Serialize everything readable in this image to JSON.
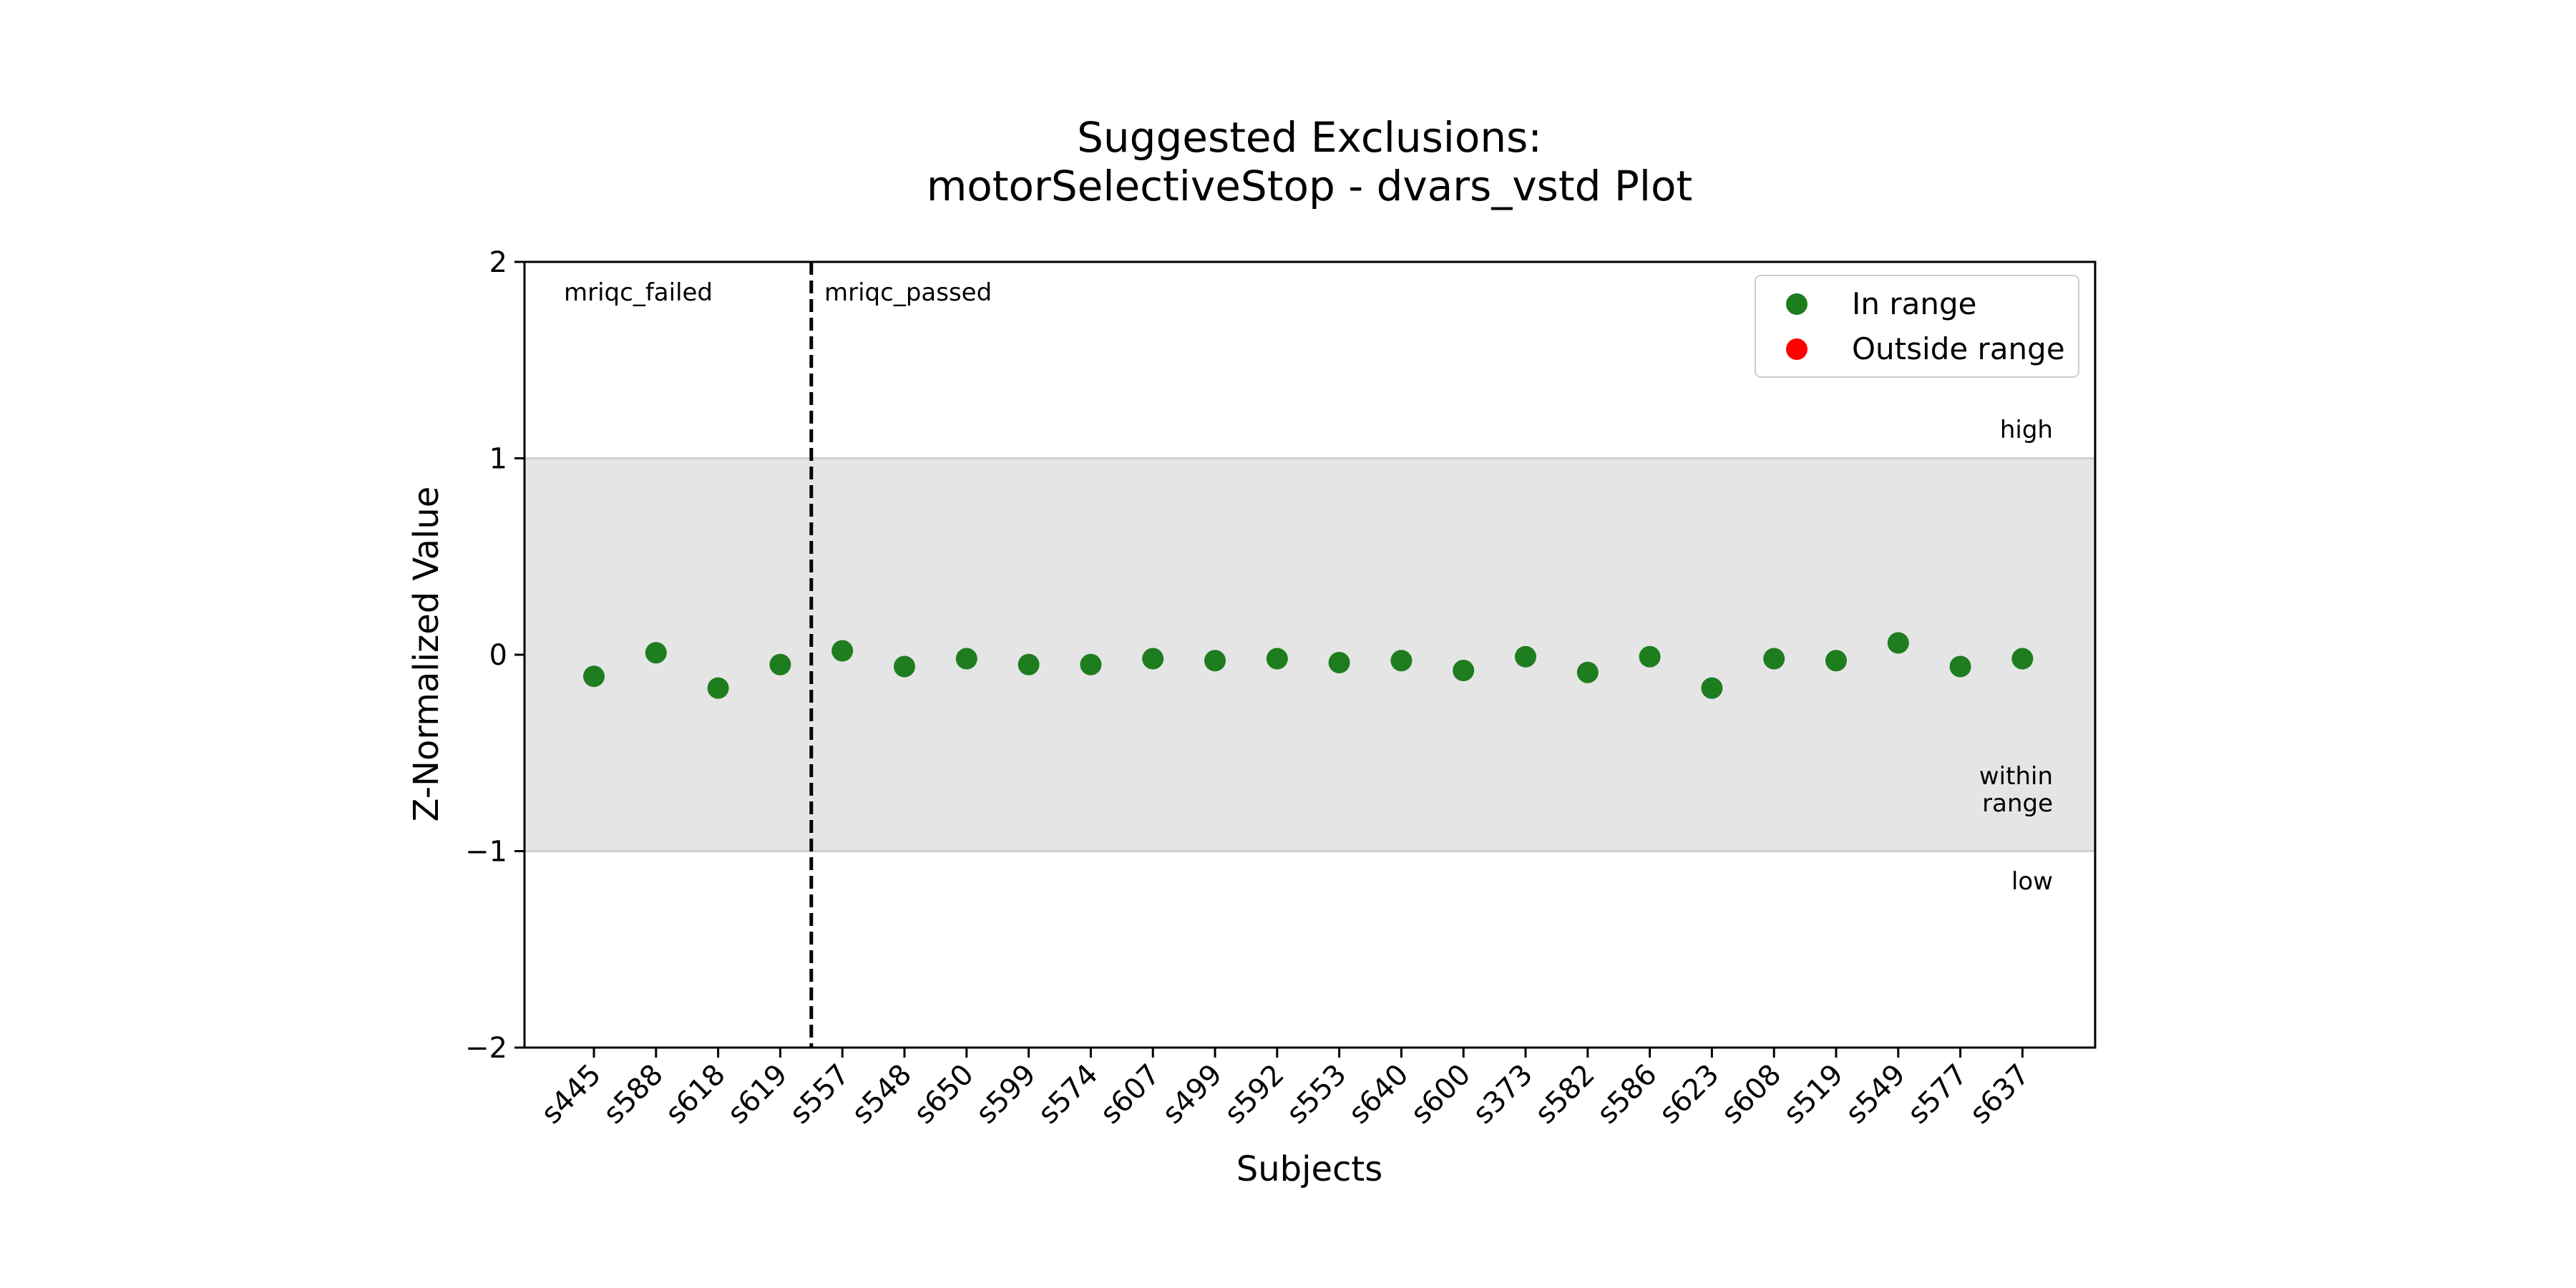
{
  "chart_data": {
    "type": "scatter",
    "title_line1": "Suggested Exclusions:",
    "title_line2": "motorSelectiveStop - dvars_vstd Plot",
    "xlabel": "Subjects",
    "ylabel": "Z-Normalized Value",
    "ylim": [
      -2,
      2
    ],
    "yticks": [
      2,
      1,
      0,
      -1,
      -2
    ],
    "ytick_labels": [
      "2",
      "1",
      "0",
      "−1",
      "−2"
    ],
    "range": {
      "low": -1,
      "high": 1,
      "color": "#e5e5e5"
    },
    "grid": false,
    "legend_position": "top-right",
    "legend": [
      {
        "label": "In range",
        "color": "#1e7d1e"
      },
      {
        "label": "Outside range",
        "color": "#ff0000"
      }
    ],
    "group_divider_after_index": 3,
    "group_labels": [
      "mriqc_failed",
      "mriqc_passed"
    ],
    "band_labels": {
      "high": "high",
      "within_line1": "within",
      "within_line2": "range",
      "low": "low"
    },
    "categories": [
      "s445",
      "s588",
      "s618",
      "s619",
      "s557",
      "s548",
      "s650",
      "s599",
      "s574",
      "s607",
      "s499",
      "s592",
      "s553",
      "s640",
      "s600",
      "s373",
      "s582",
      "s586",
      "s623",
      "s608",
      "s519",
      "s549",
      "s577",
      "s637"
    ],
    "values": [
      -0.11,
      0.01,
      -0.17,
      -0.05,
      0.02,
      -0.06,
      -0.02,
      -0.05,
      -0.05,
      -0.02,
      -0.03,
      -0.02,
      -0.04,
      -0.03,
      -0.08,
      -0.01,
      -0.09,
      -0.01,
      -0.17,
      -0.02,
      -0.03,
      0.06,
      -0.06,
      -0.02
    ],
    "point_color": "#1e7d1e"
  }
}
